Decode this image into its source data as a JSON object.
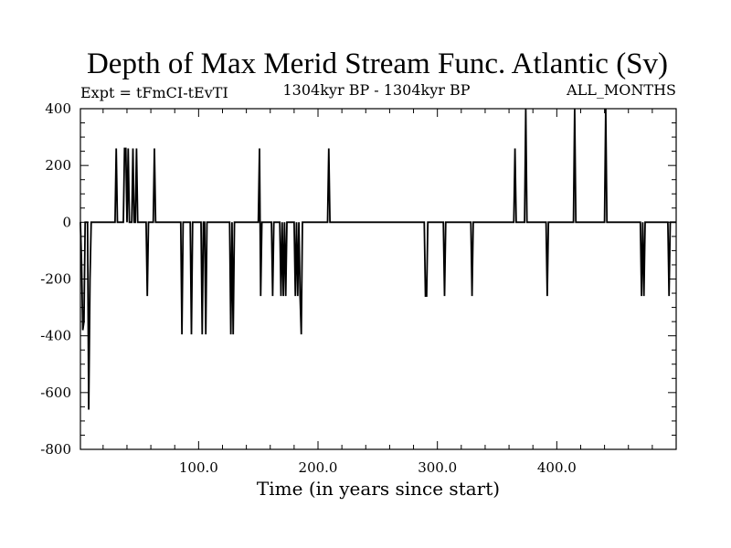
{
  "chart_data": {
    "type": "line",
    "title": "Depth of Max Merid Stream Func. Atlantic (Sv)",
    "subtitle_left": "Expt = tFmCI-tEvTI",
    "subtitle_center": "1304kyr BP - 1304kyr BP",
    "subtitle_right": "ALL_MONTHS",
    "xlabel": "Time (in years since start)",
    "ylabel": "",
    "xlim": [
      1,
      500
    ],
    "ylim": [
      -800,
      400
    ],
    "x_ticks": [
      100,
      200,
      300,
      400
    ],
    "x_tick_labels": [
      "100.0",
      "200.0",
      "300.0",
      "400.0"
    ],
    "y_ticks": [
      400,
      200,
      0,
      -200,
      -400,
      -600,
      -800
    ],
    "y_tick_labels": [
      "400",
      "200",
      "0",
      "-200",
      "-400",
      "-600",
      "-800"
    ],
    "grid": false,
    "series": [
      {
        "name": "depth",
        "x": [
          1,
          2,
          3,
          4,
          5,
          6,
          7,
          8,
          9,
          10,
          11,
          12,
          30,
          31,
          32,
          33,
          37,
          38,
          39,
          40,
          41,
          42,
          43,
          44,
          45,
          46,
          47,
          48,
          49,
          50,
          56,
          57,
          58,
          62,
          63,
          64,
          85,
          86,
          87,
          93,
          94,
          95,
          102,
          103,
          104,
          105,
          106,
          107,
          126,
          127,
          128,
          129,
          130,
          150,
          151,
          152,
          153,
          161,
          162,
          163,
          168,
          169,
          170,
          171,
          172,
          173,
          174,
          175,
          180,
          181,
          182,
          183,
          184,
          185,
          186,
          187,
          188,
          208,
          209,
          210,
          289,
          290,
          291,
          292,
          305,
          306,
          307,
          328,
          329,
          330,
          364,
          365,
          366,
          373,
          374,
          375,
          391,
          392,
          393,
          414,
          415,
          416,
          440,
          441,
          442,
          470,
          471,
          472,
          473,
          474,
          493,
          494,
          495
        ],
        "y": [
          0,
          -150,
          -380,
          -350,
          0,
          0,
          0,
          -660,
          -200,
          0,
          0,
          0,
          0,
          260,
          0,
          0,
          0,
          260,
          260,
          0,
          260,
          0,
          0,
          0,
          260,
          0,
          0,
          260,
          0,
          0,
          0,
          -260,
          0,
          0,
          260,
          0,
          0,
          -395,
          0,
          0,
          -395,
          0,
          0,
          -395,
          0,
          0,
          -395,
          0,
          0,
          -395,
          0,
          -395,
          0,
          0,
          260,
          -260,
          0,
          0,
          -260,
          0,
          0,
          -260,
          0,
          -260,
          0,
          -260,
          0,
          0,
          0,
          -260,
          0,
          -260,
          0,
          -260,
          -395,
          0,
          0,
          0,
          260,
          0,
          0,
          -260,
          -260,
          0,
          0,
          -260,
          0,
          0,
          -260,
          0,
          0,
          260,
          0,
          0,
          400,
          0,
          0,
          -260,
          0,
          0,
          400,
          0,
          0,
          400,
          0,
          0,
          -260,
          0,
          -260,
          0,
          0,
          -260,
          0
        ]
      }
    ]
  }
}
